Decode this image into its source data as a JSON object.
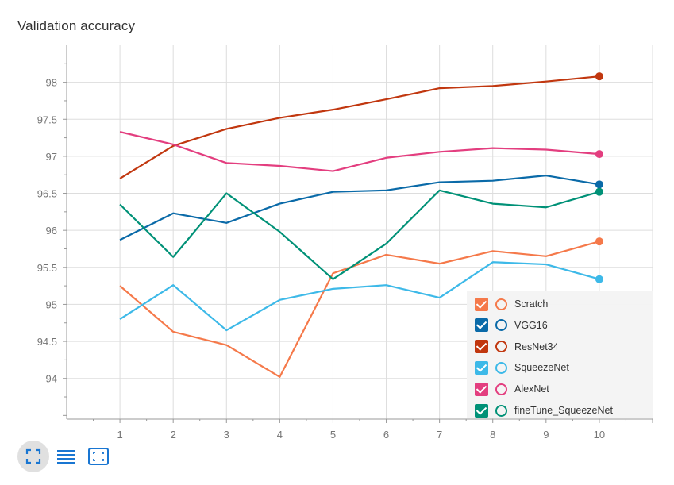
{
  "chart_data": {
    "type": "line",
    "title": "Validation accuracy",
    "x": [
      1,
      2,
      3,
      4,
      5,
      6,
      7,
      8,
      9,
      10
    ],
    "xlim": [
      0,
      11
    ],
    "ylim": [
      93.45,
      98.5
    ],
    "xticks": [
      "1",
      "2",
      "3",
      "4",
      "5",
      "6",
      "7",
      "8",
      "9",
      "10"
    ],
    "yticks": [
      "94",
      "94.5",
      "95",
      "95.5",
      "96",
      "96.5",
      "97",
      "97.5",
      "98"
    ],
    "grid": true,
    "legend_position": "bottom-right",
    "series": [
      {
        "name": "Scratch",
        "color": "#f5794a",
        "values": [
          95.25,
          94.63,
          94.45,
          94.02,
          95.42,
          95.67,
          95.55,
          95.72,
          95.65,
          95.85
        ]
      },
      {
        "name": "VGG16",
        "color": "#0a6aa8",
        "values": [
          95.87,
          96.23,
          96.1,
          96.36,
          96.52,
          96.54,
          96.65,
          96.67,
          96.74,
          96.62
        ]
      },
      {
        "name": "ResNet34",
        "color": "#c1370f",
        "values": [
          96.7,
          97.14,
          97.37,
          97.52,
          97.63,
          97.77,
          97.92,
          97.95,
          98.01,
          98.08
        ]
      },
      {
        "name": "SqueezeNet",
        "color": "#3db9e8",
        "values": [
          94.8,
          95.26,
          94.65,
          95.06,
          95.21,
          95.26,
          95.09,
          95.57,
          95.54,
          95.34
        ]
      },
      {
        "name": "AlexNet",
        "color": "#e33e7f",
        "values": [
          97.33,
          97.16,
          96.91,
          96.87,
          96.8,
          96.98,
          97.06,
          97.11,
          97.09,
          97.03
        ]
      },
      {
        "name": "fineTune_SqueezeNet",
        "color": "#009177",
        "values": [
          96.35,
          95.64,
          96.5,
          95.98,
          95.34,
          95.82,
          96.54,
          96.36,
          96.31,
          96.52
        ]
      }
    ]
  },
  "toolbar": [
    {
      "icon": "fullscreen-icon",
      "active": true
    },
    {
      "icon": "list-icon",
      "active": false
    },
    {
      "icon": "fit-domain-icon",
      "active": false
    }
  ]
}
